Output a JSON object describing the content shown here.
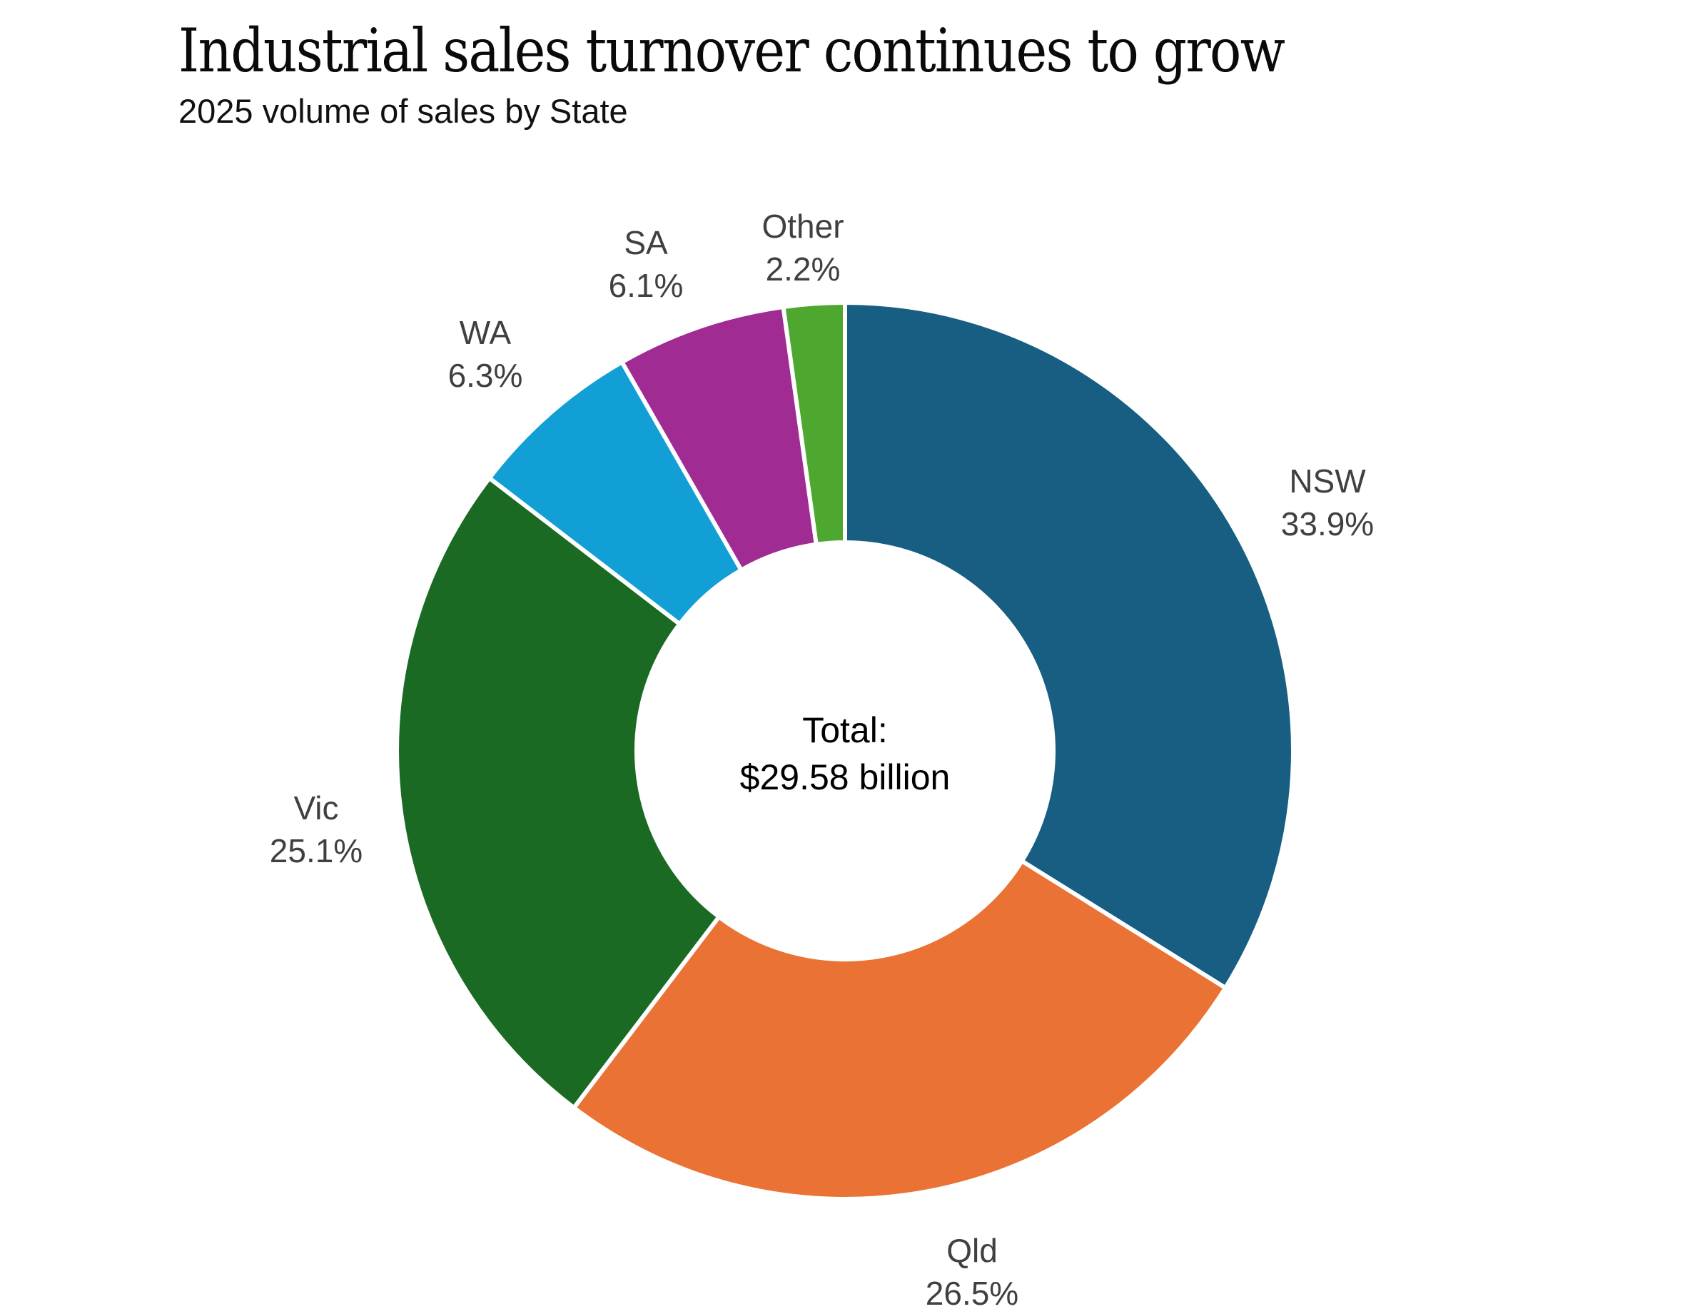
{
  "header": {
    "title": "Industrial sales turnover continues to grow",
    "subtitle": "2025 volume of sales by State"
  },
  "chart_data": {
    "type": "pie",
    "variant": "donut",
    "title": "Industrial sales turnover continues to grow",
    "subtitle": "2025 volume of sales by State",
    "center_label": [
      "Total:",
      "$29.58 billion"
    ],
    "total": "$29.58 billion",
    "start": "top",
    "direction": "clockwise",
    "slices": [
      {
        "name": "NSW",
        "value": 33.9,
        "label": "33.9%",
        "color": "#175E82"
      },
      {
        "name": "Qld",
        "value": 26.5,
        "label": "26.5%",
        "color": "#E97234"
      },
      {
        "name": "Vic",
        "value": 25.1,
        "label": "25.1%",
        "color": "#1B6A24"
      },
      {
        "name": "WA",
        "value": 6.3,
        "label": "6.3%",
        "color": "#119FD6"
      },
      {
        "name": "SA",
        "value": 6.1,
        "label": "6.1%",
        "color": "#A02B93"
      },
      {
        "name": "Other",
        "value": 2.2,
        "label": "2.2%",
        "color": "#4EA72E"
      }
    ],
    "legend": "none",
    "label_style": "outside, name above percent"
  }
}
